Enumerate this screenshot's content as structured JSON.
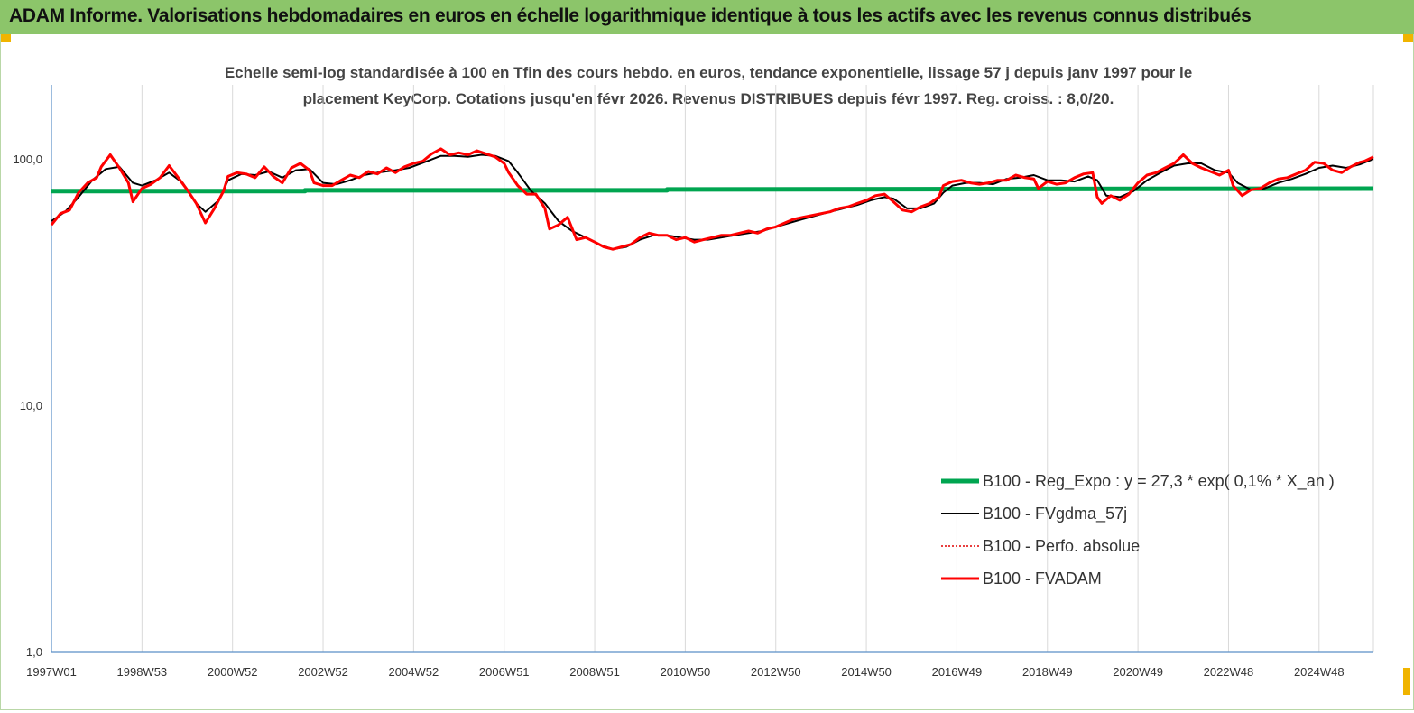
{
  "header": {
    "title": "ADAM Informe. Valorisations hebdomadaires en euros en échelle logarithmique identique à tous les actifs avec les revenus connus distribués"
  },
  "chart_data": {
    "type": "line",
    "title": "Echelle semi-log standardisée à 100 en Tfin des cours hebdo. en euros, tendance exponentielle, lissage 57 j depuis janv 1997 pour le placement KeyCorp. Cotations jusqu'en févr 2026. Revenus DISTRIBUES depuis févr 1997. Reg. croiss. : 8,0/20.",
    "title_lines": [
      "Echelle semi-log standardisée à 100 en Tfin des cours hebdo. en euros, tendance exponentielle, lissage 57 j depuis janv 1997 pour le",
      "placement KeyCorp. Cotations jusqu'en févr 2026. Revenus DISTRIBUES depuis févr 1997. Reg. croiss. : 8,0/20."
    ],
    "y_scale": "log",
    "ylim": [
      1,
      200
    ],
    "y_ticks": [
      1,
      10,
      100
    ],
    "y_tick_labels": [
      "1,0",
      "10,0",
      "100,0"
    ],
    "xlim": [
      1997.0,
      2026.2
    ],
    "x_tick_labels": [
      "1997W01",
      "1998W53",
      "2000W52",
      "2002W52",
      "2004W52",
      "2006W51",
      "2008W51",
      "2010W50",
      "2012W50",
      "2014W50",
      "2016W49",
      "2018W49",
      "2020W49",
      "2022W48",
      "2024W48"
    ],
    "x_tick_years": [
      1997,
      1999,
      2001,
      2003,
      2005,
      2007,
      2009,
      2011,
      2013,
      2015,
      2017,
      2019,
      2021,
      2023,
      2025
    ],
    "grid": "vertical",
    "legend_position": "lower-right",
    "series": [
      {
        "name": "B100 - Reg_Expo : y = 27,3 * exp( 0,1% * X_an )",
        "color": "#00a550",
        "width": 5,
        "style": "solid",
        "points": [
          [
            1997.0,
            74
          ],
          [
            2002.6,
            74
          ],
          [
            2002.6,
            74.6
          ],
          [
            2010.6,
            74.6
          ],
          [
            2010.6,
            75.2
          ],
          [
            2026.2,
            75.8
          ]
        ]
      },
      {
        "name": "B100 - FVgdma_57j",
        "color": "#000000",
        "width": 2,
        "style": "solid",
        "points": [
          [
            1997.0,
            56
          ],
          [
            1997.3,
            61
          ],
          [
            1997.6,
            70
          ],
          [
            1997.9,
            82
          ],
          [
            1998.2,
            91
          ],
          [
            1998.5,
            93
          ],
          [
            1998.8,
            80
          ],
          [
            1999.0,
            78
          ],
          [
            1999.3,
            82
          ],
          [
            1999.6,
            88
          ],
          [
            1999.9,
            80
          ],
          [
            2000.2,
            66
          ],
          [
            2000.4,
            61
          ],
          [
            2000.7,
            68
          ],
          [
            2000.9,
            82
          ],
          [
            2001.2,
            87
          ],
          [
            2001.5,
            86
          ],
          [
            2001.8,
            89
          ],
          [
            2002.1,
            84
          ],
          [
            2002.4,
            90
          ],
          [
            2002.7,
            91
          ],
          [
            2003.0,
            80
          ],
          [
            2003.3,
            79
          ],
          [
            2003.6,
            82
          ],
          [
            2003.9,
            86
          ],
          [
            2004.2,
            88
          ],
          [
            2004.6,
            90
          ],
          [
            2004.9,
            92
          ],
          [
            2005.3,
            98
          ],
          [
            2005.6,
            103
          ],
          [
            2005.9,
            103
          ],
          [
            2006.2,
            102
          ],
          [
            2006.5,
            104
          ],
          [
            2006.8,
            103
          ],
          [
            2007.1,
            98
          ],
          [
            2007.3,
            88
          ],
          [
            2007.6,
            74
          ],
          [
            2007.9,
            66
          ],
          [
            2008.2,
            56
          ],
          [
            2008.5,
            51
          ],
          [
            2008.8,
            48
          ],
          [
            2009.1,
            45
          ],
          [
            2009.4,
            43
          ],
          [
            2009.7,
            44
          ],
          [
            2010.0,
            47
          ],
          [
            2010.3,
            49
          ],
          [
            2010.6,
            49
          ],
          [
            2010.9,
            48
          ],
          [
            2011.2,
            47
          ],
          [
            2011.5,
            47
          ],
          [
            2011.8,
            48
          ],
          [
            2012.1,
            49
          ],
          [
            2012.4,
            50
          ],
          [
            2012.7,
            51
          ],
          [
            2013.0,
            53
          ],
          [
            2013.3,
            55
          ],
          [
            2013.6,
            57
          ],
          [
            2013.9,
            59
          ],
          [
            2014.2,
            61
          ],
          [
            2014.5,
            63
          ],
          [
            2014.8,
            65
          ],
          [
            2015.1,
            68
          ],
          [
            2015.4,
            70
          ],
          [
            2015.6,
            69
          ],
          [
            2015.9,
            63
          ],
          [
            2016.2,
            63
          ],
          [
            2016.5,
            66
          ],
          [
            2016.7,
            73
          ],
          [
            2016.9,
            78
          ],
          [
            2017.2,
            80
          ],
          [
            2017.5,
            80
          ],
          [
            2017.8,
            79
          ],
          [
            2018.1,
            83
          ],
          [
            2018.4,
            84
          ],
          [
            2018.7,
            86
          ],
          [
            2019.0,
            82
          ],
          [
            2019.3,
            82
          ],
          [
            2019.6,
            81
          ],
          [
            2019.9,
            85
          ],
          [
            2020.1,
            82
          ],
          [
            2020.3,
            71
          ],
          [
            2020.6,
            70
          ],
          [
            2020.9,
            74
          ],
          [
            2021.2,
            82
          ],
          [
            2021.5,
            88
          ],
          [
            2021.8,
            94
          ],
          [
            2022.1,
            96
          ],
          [
            2022.4,
            96
          ],
          [
            2022.7,
            90
          ],
          [
            2023.0,
            88
          ],
          [
            2023.2,
            80
          ],
          [
            2023.5,
            75
          ],
          [
            2023.8,
            76
          ],
          [
            2024.1,
            80
          ],
          [
            2024.4,
            83
          ],
          [
            2024.7,
            87
          ],
          [
            2025.0,
            92
          ],
          [
            2025.3,
            94
          ],
          [
            2025.6,
            92
          ],
          [
            2025.9,
            95
          ],
          [
            2026.2,
            100
          ]
        ]
      },
      {
        "name": "B100 - Perfo. absolue",
        "color": "#e00000",
        "width": 1.5,
        "style": "dotted",
        "points": []
      },
      {
        "name": "B100 - FVADAM",
        "color": "#ff0000",
        "width": 3,
        "style": "solid",
        "points": [
          [
            1997.0,
            54
          ],
          [
            1997.2,
            60
          ],
          [
            1997.4,
            62
          ],
          [
            1997.6,
            73
          ],
          [
            1997.8,
            80
          ],
          [
            1998.0,
            84
          ],
          [
            1998.1,
            93
          ],
          [
            1998.3,
            104
          ],
          [
            1998.5,
            92
          ],
          [
            1998.7,
            80
          ],
          [
            1998.8,
            67
          ],
          [
            1999.0,
            76
          ],
          [
            1999.2,
            79
          ],
          [
            1999.4,
            84
          ],
          [
            1999.6,
            94
          ],
          [
            1999.8,
            84
          ],
          [
            2000.0,
            75
          ],
          [
            2000.2,
            66
          ],
          [
            2000.4,
            55
          ],
          [
            2000.6,
            63
          ],
          [
            2000.8,
            74
          ],
          [
            2000.9,
            85
          ],
          [
            2001.1,
            88
          ],
          [
            2001.3,
            87
          ],
          [
            2001.5,
            84
          ],
          [
            2001.7,
            93
          ],
          [
            2001.9,
            85
          ],
          [
            2002.1,
            80
          ],
          [
            2002.3,
            92
          ],
          [
            2002.5,
            96
          ],
          [
            2002.7,
            90
          ],
          [
            2002.8,
            80
          ],
          [
            2003.0,
            78
          ],
          [
            2003.2,
            78
          ],
          [
            2003.4,
            82
          ],
          [
            2003.6,
            86
          ],
          [
            2003.8,
            84
          ],
          [
            2004.0,
            89
          ],
          [
            2004.2,
            87
          ],
          [
            2004.4,
            92
          ],
          [
            2004.6,
            88
          ],
          [
            2004.8,
            93
          ],
          [
            2005.0,
            96
          ],
          [
            2005.2,
            98
          ],
          [
            2005.4,
            105
          ],
          [
            2005.6,
            110
          ],
          [
            2005.8,
            104
          ],
          [
            2006.0,
            106
          ],
          [
            2006.2,
            104
          ],
          [
            2006.4,
            108
          ],
          [
            2006.6,
            105
          ],
          [
            2006.8,
            102
          ],
          [
            2007.0,
            96
          ],
          [
            2007.1,
            88
          ],
          [
            2007.3,
            78
          ],
          [
            2007.5,
            72
          ],
          [
            2007.7,
            72
          ],
          [
            2007.9,
            63
          ],
          [
            2008.0,
            52
          ],
          [
            2008.2,
            54
          ],
          [
            2008.4,
            58
          ],
          [
            2008.6,
            47
          ],
          [
            2008.8,
            48
          ],
          [
            2009.0,
            46
          ],
          [
            2009.2,
            44
          ],
          [
            2009.4,
            43
          ],
          [
            2009.6,
            44
          ],
          [
            2009.8,
            45
          ],
          [
            2010.0,
            48
          ],
          [
            2010.2,
            50
          ],
          [
            2010.4,
            49
          ],
          [
            2010.6,
            49
          ],
          [
            2010.8,
            47
          ],
          [
            2011.0,
            48
          ],
          [
            2011.2,
            46
          ],
          [
            2011.4,
            47
          ],
          [
            2011.6,
            48
          ],
          [
            2011.8,
            49
          ],
          [
            2012.0,
            49
          ],
          [
            2012.2,
            50
          ],
          [
            2012.4,
            51
          ],
          [
            2012.6,
            50
          ],
          [
            2012.8,
            52
          ],
          [
            2013.0,
            53
          ],
          [
            2013.2,
            55
          ],
          [
            2013.4,
            57
          ],
          [
            2013.6,
            58
          ],
          [
            2013.8,
            59
          ],
          [
            2014.0,
            60
          ],
          [
            2014.2,
            61
          ],
          [
            2014.4,
            63
          ],
          [
            2014.6,
            64
          ],
          [
            2014.8,
            66
          ],
          [
            2015.0,
            68
          ],
          [
            2015.2,
            71
          ],
          [
            2015.4,
            72
          ],
          [
            2015.6,
            67
          ],
          [
            2015.8,
            62
          ],
          [
            2016.0,
            61
          ],
          [
            2016.2,
            64
          ],
          [
            2016.4,
            66
          ],
          [
            2016.6,
            70
          ],
          [
            2016.7,
            78
          ],
          [
            2016.9,
            81
          ],
          [
            2017.1,
            82
          ],
          [
            2017.3,
            80
          ],
          [
            2017.5,
            79
          ],
          [
            2017.7,
            80
          ],
          [
            2017.9,
            82
          ],
          [
            2018.1,
            82
          ],
          [
            2018.3,
            86
          ],
          [
            2018.5,
            84
          ],
          [
            2018.7,
            83
          ],
          [
            2018.8,
            76
          ],
          [
            2019.0,
            81
          ],
          [
            2019.2,
            79
          ],
          [
            2019.4,
            80
          ],
          [
            2019.6,
            84
          ],
          [
            2019.8,
            87
          ],
          [
            2020.0,
            88
          ],
          [
            2020.1,
            70
          ],
          [
            2020.2,
            66
          ],
          [
            2020.4,
            71
          ],
          [
            2020.6,
            68
          ],
          [
            2020.8,
            72
          ],
          [
            2021.0,
            80
          ],
          [
            2021.2,
            86
          ],
          [
            2021.4,
            88
          ],
          [
            2021.6,
            92
          ],
          [
            2021.8,
            96
          ],
          [
            2022.0,
            104
          ],
          [
            2022.2,
            96
          ],
          [
            2022.4,
            92
          ],
          [
            2022.6,
            89
          ],
          [
            2022.8,
            86
          ],
          [
            2023.0,
            90
          ],
          [
            2023.1,
            78
          ],
          [
            2023.3,
            71
          ],
          [
            2023.5,
            75
          ],
          [
            2023.7,
            76
          ],
          [
            2023.9,
            80
          ],
          [
            2024.1,
            83
          ],
          [
            2024.3,
            84
          ],
          [
            2024.5,
            87
          ],
          [
            2024.7,
            90
          ],
          [
            2024.9,
            97
          ],
          [
            2025.1,
            96
          ],
          [
            2025.3,
            90
          ],
          [
            2025.5,
            88
          ],
          [
            2025.7,
            93
          ],
          [
            2025.9,
            97
          ],
          [
            2026.0,
            98
          ],
          [
            2026.2,
            102
          ]
        ]
      }
    ]
  }
}
